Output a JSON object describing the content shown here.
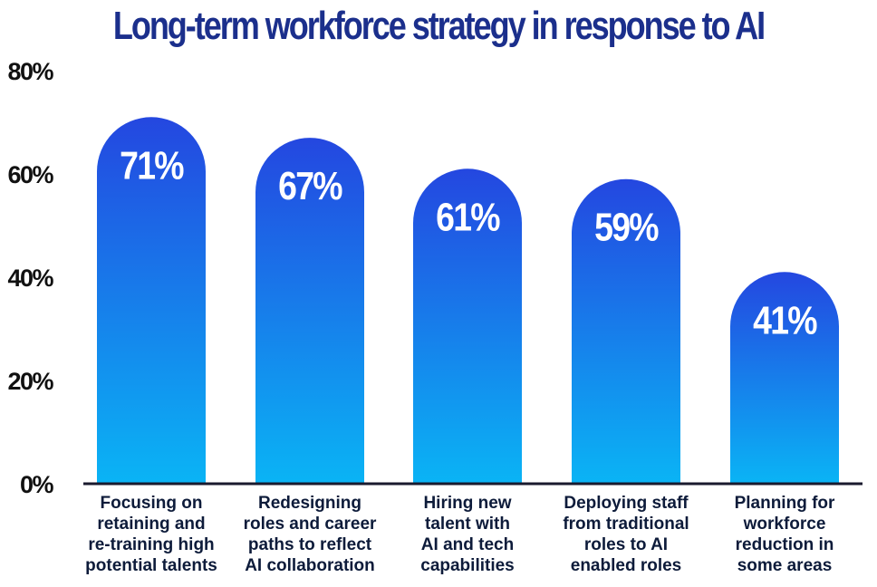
{
  "chart_data": {
    "type": "bar",
    "title": "Long-term workforce strategy in response to AI",
    "categories": [
      "Focusing on retaining and re-training high potential talents",
      "Redesigning roles and career paths to reflect AI collaboration",
      "Hiring new talent with AI and tech capabilities",
      "Deploying staff from traditional roles to AI enabled roles",
      "Planning for workforce reduction in some areas"
    ],
    "category_lines": [
      [
        "Focusing on",
        "retaining and",
        "re-training high",
        "potential talents"
      ],
      [
        "Redesigning",
        "roles and career",
        "paths to reflect",
        "AI collaboration"
      ],
      [
        "Hiring new",
        "talent with",
        "AI and tech",
        "capabilities"
      ],
      [
        "Deploying staff",
        "from traditional",
        "roles to AI",
        "enabled roles"
      ],
      [
        "Planning for",
        "workforce",
        "reduction in",
        "some areas"
      ]
    ],
    "values": [
      71,
      67,
      61,
      59,
      41
    ],
    "data_labels": [
      "71%",
      "67%",
      "61%",
      "59%",
      "41%"
    ],
    "yticks": [
      0,
      20,
      40,
      60,
      80
    ],
    "ytick_labels": [
      "0%",
      "20%",
      "40%",
      "60%",
      "80%"
    ],
    "ylim": [
      0,
      80
    ],
    "xlabel": "",
    "ylabel": "",
    "grid": false,
    "bar_color_top": "#2447e0",
    "bar_color_bottom": "#0ab4f5",
    "title_color": "#1b2f8c"
  }
}
